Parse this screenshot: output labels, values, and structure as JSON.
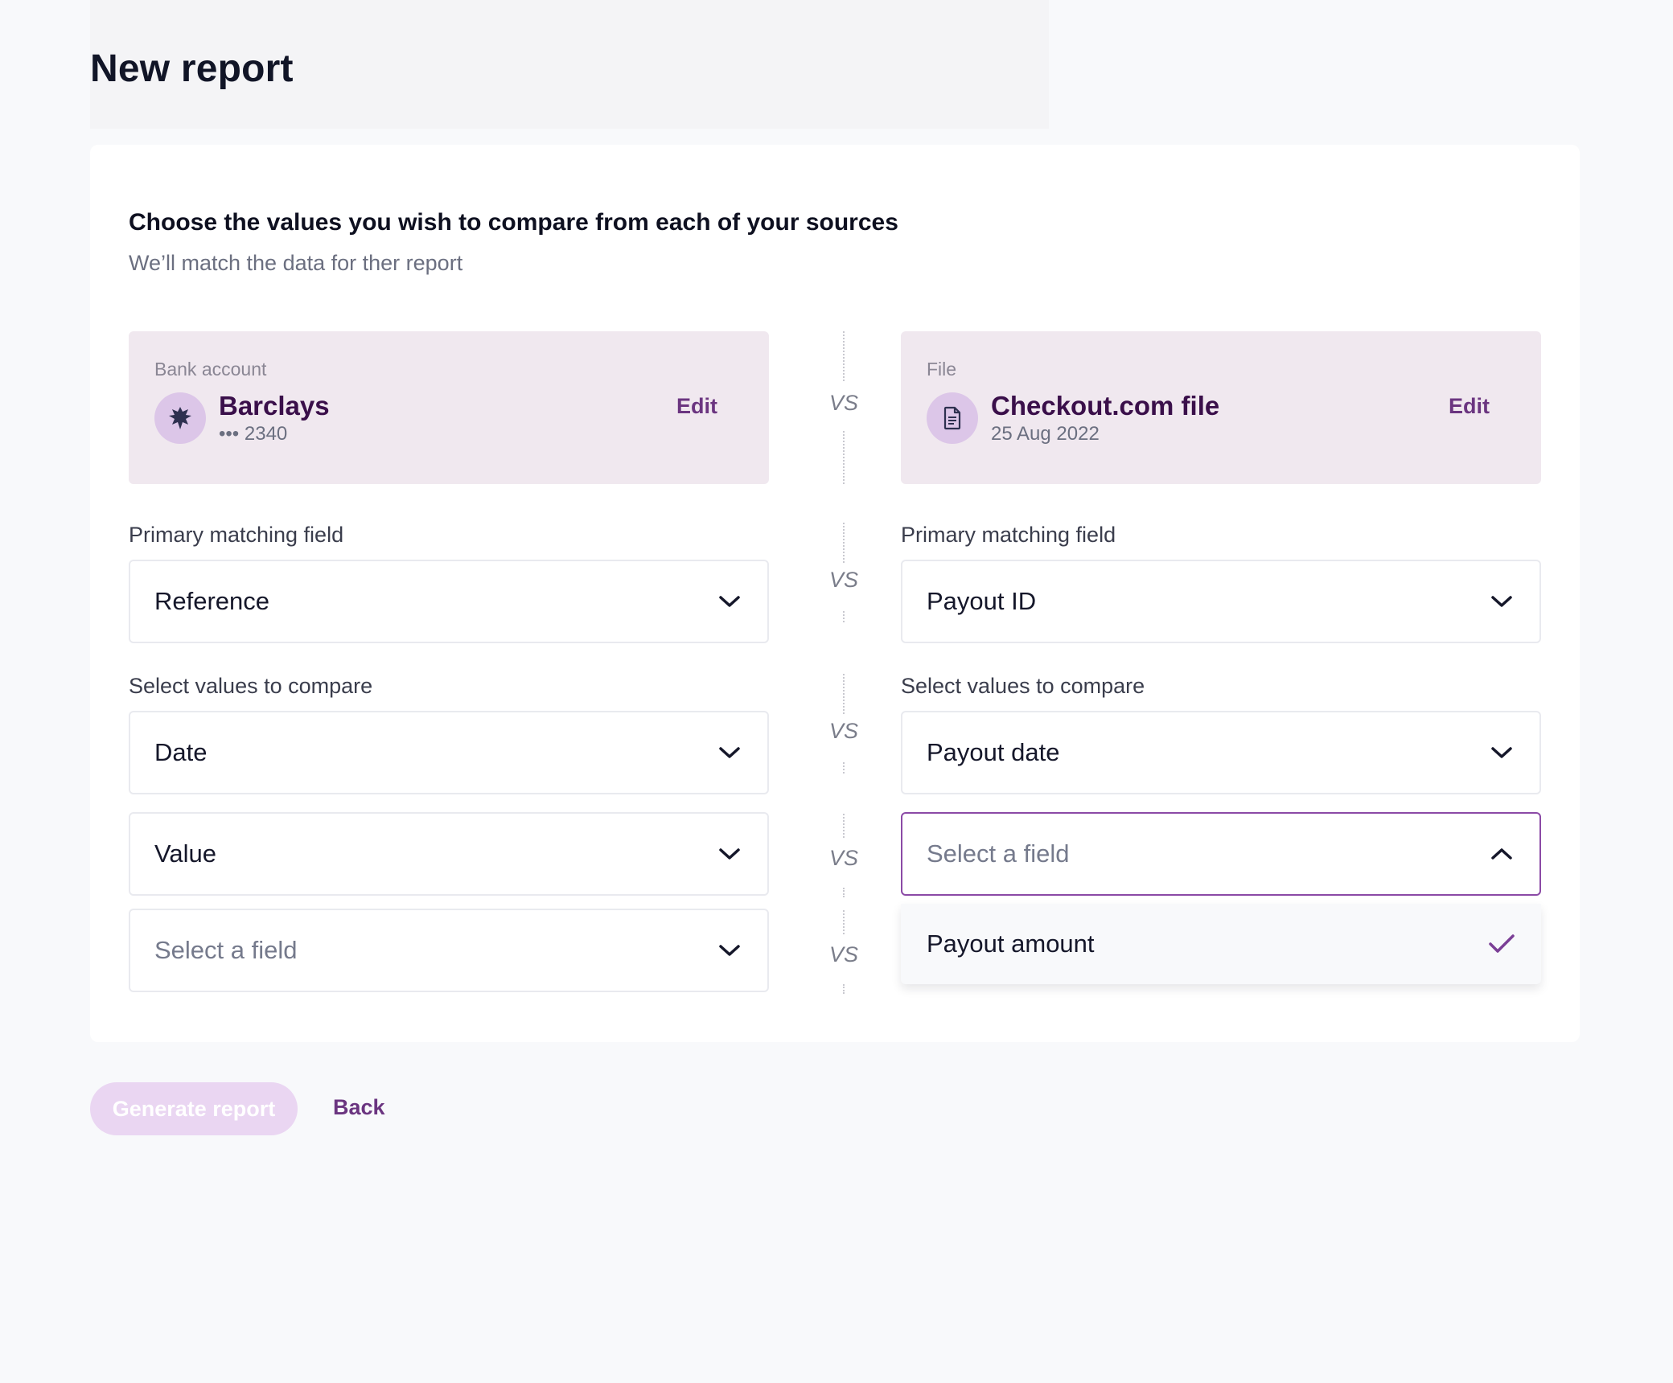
{
  "page": {
    "title": "New report"
  },
  "card": {
    "heading": "Choose the values you wish to compare from each of your sources",
    "subheading": "We’ll match the data for ther report"
  },
  "sources": {
    "left": {
      "kind": "Bank account",
      "name": "Barclays",
      "meta": "••• 2340",
      "edit_label": "Edit",
      "icon": "eagle-logo-icon"
    },
    "right": {
      "kind": "File",
      "name": "Checkout.com file",
      "meta": "25 Aug 2022",
      "edit_label": "Edit",
      "icon": "document-icon"
    }
  },
  "vs_label": "VS",
  "rows": {
    "primary": {
      "label_left": "Primary matching field",
      "label_right": "Primary matching field",
      "left_value": "Reference",
      "right_value": "Payout ID"
    },
    "compare": {
      "label_left": "Select values to compare",
      "label_right": "Select values to compare",
      "pairs": [
        {
          "left": "Date",
          "right": "Payout date"
        },
        {
          "left": "Value",
          "right": "Select a field"
        },
        {
          "left": "Select a field"
        }
      ]
    }
  },
  "dropdown": {
    "options": [
      {
        "label": "Payout amount",
        "selected": true
      }
    ]
  },
  "actions": {
    "generate_label": "Generate report",
    "back_label": "Back"
  },
  "colors": {
    "accent": "#6b3580",
    "source_bg": "#f0e8ef",
    "button_disabled": "#ead6f2",
    "focus_border": "#8b4aa6"
  }
}
